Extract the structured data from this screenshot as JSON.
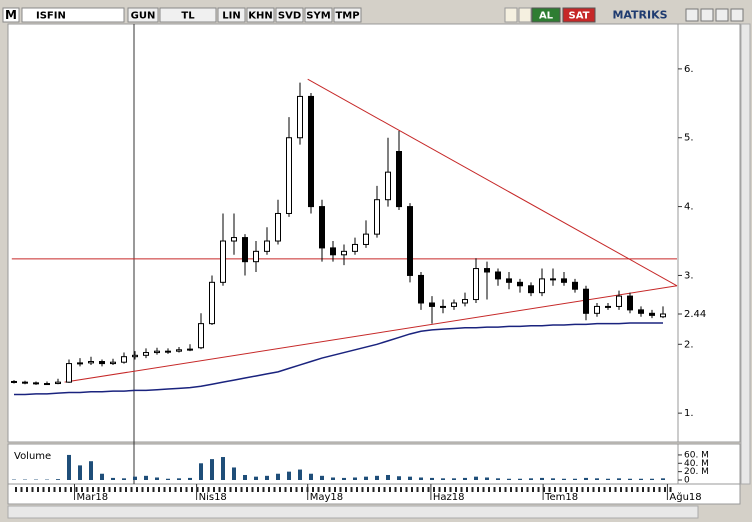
{
  "toolbar": {
    "logo": "M",
    "symbol": "ISFIN",
    "buttons": [
      "GUN",
      "TL",
      "LIN",
      "KHN",
      "SVD",
      "SYM",
      "TMP"
    ],
    "buy": "AL",
    "sell": "SAT",
    "brand": "MATRIKS"
  },
  "chart": {
    "type": "candlestick",
    "ylim": [
      0.61,
      6.71
    ],
    "yticks": [
      {
        "value": 1,
        "label": "1."
      },
      {
        "value": 2,
        "label": "2."
      },
      {
        "value": 3,
        "label": "3."
      },
      {
        "value": 4,
        "label": "4."
      },
      {
        "value": 5,
        "label": "5."
      },
      {
        "value": 6,
        "label": "6."
      }
    ],
    "xlim": [
      -0.2,
      60.4
    ],
    "xticks": [
      {
        "value": 5.5,
        "label": "Mar18"
      },
      {
        "value": 16.6,
        "label": "Nis18"
      },
      {
        "value": 26.7,
        "label": "May18"
      },
      {
        "value": 37.9,
        "label": "Haz18"
      },
      {
        "value": 48.1,
        "label": "Tem18"
      },
      {
        "value": 59.4,
        "label": "Ağu18"
      }
    ],
    "candles": [
      [
        1.46,
        1.48,
        1.43,
        1.45
      ],
      [
        1.45,
        1.47,
        1.42,
        1.44
      ],
      [
        1.44,
        1.46,
        1.41,
        1.43
      ],
      [
        1.43,
        1.46,
        1.41,
        1.43
      ],
      [
        1.43,
        1.5,
        1.42,
        1.45
      ],
      [
        1.45,
        1.78,
        1.44,
        1.72
      ],
      [
        1.72,
        1.8,
        1.68,
        1.73
      ],
      [
        1.73,
        1.82,
        1.7,
        1.75
      ],
      [
        1.75,
        1.78,
        1.68,
        1.72
      ],
      [
        1.72,
        1.79,
        1.7,
        1.74
      ],
      [
        1.74,
        1.88,
        1.72,
        1.82
      ],
      [
        1.82,
        1.9,
        1.78,
        1.84
      ],
      [
        1.84,
        1.94,
        1.8,
        1.88
      ],
      [
        1.88,
        1.95,
        1.85,
        1.9
      ],
      [
        1.9,
        1.94,
        1.86,
        1.9
      ],
      [
        1.9,
        1.96,
        1.88,
        1.92
      ],
      [
        1.92,
        2.0,
        1.9,
        1.93
      ],
      [
        1.95,
        2.45,
        1.93,
        2.3
      ],
      [
        2.3,
        3.0,
        2.28,
        2.9
      ],
      [
        2.9,
        3.9,
        2.85,
        3.5
      ],
      [
        3.5,
        3.9,
        3.3,
        3.55
      ],
      [
        3.55,
        3.6,
        3.0,
        3.2
      ],
      [
        3.2,
        3.5,
        3.05,
        3.35
      ],
      [
        3.35,
        3.7,
        3.3,
        3.5
      ],
      [
        3.5,
        4.1,
        3.45,
        3.9
      ],
      [
        3.9,
        5.3,
        3.85,
        5.0
      ],
      [
        5.0,
        5.8,
        4.9,
        5.6
      ],
      [
        5.6,
        5.65,
        3.9,
        4.0
      ],
      [
        4.0,
        4.1,
        3.2,
        3.4
      ],
      [
        3.4,
        3.5,
        3.2,
        3.3
      ],
      [
        3.3,
        3.45,
        3.15,
        3.35
      ],
      [
        3.35,
        3.55,
        3.3,
        3.45
      ],
      [
        3.45,
        3.8,
        3.4,
        3.6
      ],
      [
        3.6,
        4.3,
        3.55,
        4.1
      ],
      [
        4.1,
        5.0,
        4.0,
        4.5
      ],
      [
        4.8,
        5.1,
        3.95,
        4.0
      ],
      [
        4.0,
        4.05,
        2.9,
        3.0
      ],
      [
        3.0,
        3.05,
        2.5,
        2.6
      ],
      [
        2.6,
        2.7,
        2.3,
        2.55
      ],
      [
        2.55,
        2.65,
        2.45,
        2.55
      ],
      [
        2.55,
        2.65,
        2.5,
        2.6
      ],
      [
        2.6,
        2.75,
        2.55,
        2.65
      ],
      [
        2.65,
        3.25,
        2.6,
        3.1
      ],
      [
        3.1,
        3.2,
        2.65,
        3.05
      ],
      [
        3.05,
        3.1,
        2.85,
        2.95
      ],
      [
        2.95,
        3.05,
        2.8,
        2.9
      ],
      [
        2.9,
        2.95,
        2.75,
        2.85
      ],
      [
        2.85,
        2.9,
        2.7,
        2.75
      ],
      [
        2.75,
        3.1,
        2.7,
        2.95
      ],
      [
        2.95,
        3.1,
        2.85,
        2.95
      ],
      [
        2.95,
        3.05,
        2.85,
        2.9
      ],
      [
        2.9,
        2.95,
        2.75,
        2.8
      ],
      [
        2.8,
        2.85,
        2.35,
        2.45
      ],
      [
        2.45,
        2.6,
        2.4,
        2.55
      ],
      [
        2.55,
        2.6,
        2.5,
        2.55
      ],
      [
        2.55,
        2.78,
        2.5,
        2.7
      ],
      [
        2.7,
        2.75,
        2.45,
        2.5
      ],
      [
        2.5,
        2.55,
        2.4,
        2.45
      ],
      [
        2.45,
        2.5,
        2.38,
        2.42
      ],
      [
        2.4,
        2.55,
        2.38,
        2.44
      ]
    ],
    "ma": [
      1.27,
      1.27,
      1.28,
      1.28,
      1.29,
      1.3,
      1.3,
      1.31,
      1.31,
      1.32,
      1.32,
      1.33,
      1.33,
      1.34,
      1.35,
      1.36,
      1.37,
      1.39,
      1.42,
      1.45,
      1.48,
      1.51,
      1.54,
      1.57,
      1.6,
      1.65,
      1.7,
      1.75,
      1.8,
      1.84,
      1.88,
      1.92,
      1.96,
      2.0,
      2.05,
      2.1,
      2.15,
      2.19,
      2.21,
      2.22,
      2.23,
      2.24,
      2.24,
      2.25,
      2.25,
      2.26,
      2.26,
      2.27,
      2.27,
      2.28,
      2.28,
      2.29,
      2.29,
      2.3,
      2.3,
      2.3,
      2.31,
      2.31,
      2.31,
      2.31
    ],
    "ma_color": "#1a237e",
    "trendlines": [
      {
        "from": [
          26.7,
          5.85
        ],
        "to": [
          60.4,
          2.85
        ]
      },
      {
        "from": [
          4.6,
          1.45
        ],
        "to": [
          60.4,
          2.85
        ]
      },
      {
        "from": [
          -0.2,
          3.24
        ],
        "to": [
          60.4,
          3.24
        ]
      }
    ],
    "trend_color": "#c62828",
    "volume": {
      "label": "Volume",
      "ylim": [
        0,
        79
      ],
      "yticks": [
        0,
        {
          "value": 20,
          "label": "20. M"
        },
        {
          "value": 40,
          "label": "40. M"
        },
        {
          "value": 60,
          "label": "60. M"
        }
      ],
      "color": "#1f4e79",
      "values": [
        1,
        1,
        1,
        1,
        2,
        60,
        35,
        45,
        15,
        5,
        4,
        8,
        10,
        6,
        3,
        4,
        5,
        40,
        50,
        55,
        30,
        12,
        8,
        10,
        15,
        20,
        25,
        15,
        10,
        6,
        5,
        6,
        8,
        10,
        12,
        9,
        8,
        6,
        5,
        4,
        4,
        5,
        8,
        6,
        4,
        3,
        3,
        4,
        5,
        4,
        3,
        3,
        5,
        4,
        3,
        4,
        3,
        3,
        3,
        4
      ]
    }
  }
}
